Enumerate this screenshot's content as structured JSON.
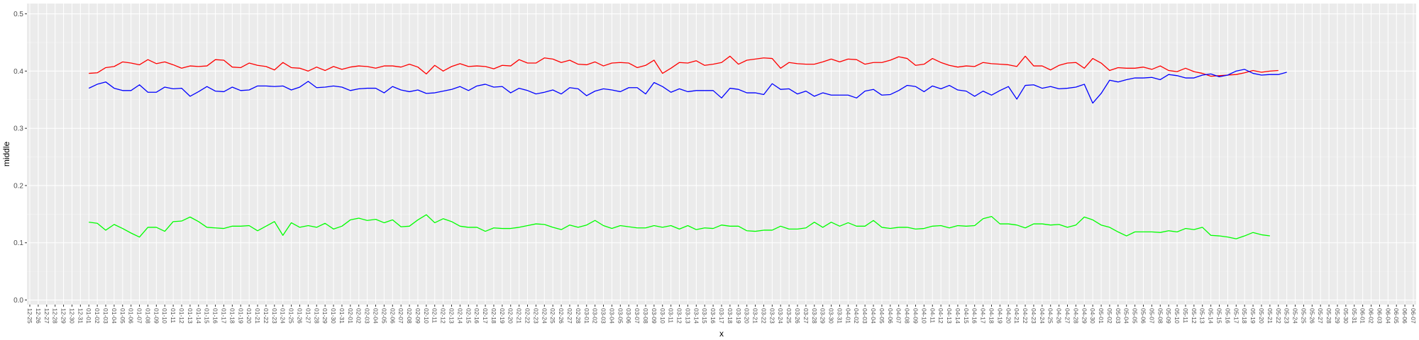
{
  "chart_data": {
    "type": "line",
    "xlabel": "x",
    "ylabel": "middle",
    "ylim": [
      -0.008,
      0.518
    ],
    "y_ticks": [
      0.0,
      0.1,
      0.2,
      0.3,
      0.4,
      0.5
    ],
    "y_tick_labels": [
      "0.0",
      "0.1",
      "0.2",
      "0.3",
      "0.4",
      "0.5"
    ],
    "x_tick_labels": [
      "12-25",
      "12-26",
      "12-27",
      "12-28",
      "12-29",
      "12-30",
      "12-31",
      "01-01",
      "01-02",
      "01-03",
      "01-04",
      "01-05",
      "01-06",
      "01-07",
      "01-08",
      "01-09",
      "01-10",
      "01-11",
      "01-12",
      "01-13",
      "01-14",
      "01-15",
      "01-16",
      "01-17",
      "01-18",
      "01-19",
      "01-20",
      "01-21",
      "01-22",
      "01-23",
      "01-24",
      "01-25",
      "01-26",
      "01-27",
      "01-28",
      "01-29",
      "01-30",
      "01-31",
      "02-01",
      "02-02",
      "02-03",
      "02-04",
      "02-05",
      "02-06",
      "02-07",
      "02-08",
      "02-09",
      "02-10",
      "02-11",
      "02-12",
      "02-13",
      "02-14",
      "02-15",
      "02-16",
      "02-17",
      "02-18",
      "02-19",
      "02-20",
      "02-21",
      "02-22",
      "02-23",
      "02-24",
      "02-25",
      "02-26",
      "02-27",
      "02-28",
      "03-01",
      "03-02",
      "03-03",
      "03-04",
      "03-05",
      "03-06",
      "03-07",
      "03-08",
      "03-09",
      "03-10",
      "03-11",
      "03-12",
      "03-13",
      "03-14",
      "03-15",
      "03-16",
      "03-17",
      "03-18",
      "03-19",
      "03-20",
      "03-21",
      "03-22",
      "03-23",
      "03-24",
      "03-25",
      "03-26",
      "03-27",
      "03-28",
      "03-29",
      "03-30",
      "03-31",
      "04-01",
      "04-02",
      "04-03",
      "04-04",
      "04-05",
      "04-06",
      "04-07",
      "04-08",
      "04-09",
      "04-10",
      "04-11",
      "04-12",
      "04-13",
      "04-14",
      "04-15",
      "04-16",
      "04-17",
      "04-18",
      "04-19",
      "04-20",
      "04-21",
      "04-22",
      "04-23",
      "04-24",
      "04-25",
      "04-26",
      "04-27",
      "04-28",
      "04-29",
      "04-30",
      "05-01",
      "05-02",
      "05-03",
      "05-04",
      "05-05",
      "05-06",
      "05-07",
      "05-08",
      "05-09",
      "05-10",
      "05-11",
      "05-12",
      "05-13",
      "05-14",
      "05-15",
      "05-16",
      "05-17",
      "05-18",
      "05-19",
      "05-20",
      "05-21",
      "05-22",
      "05-23",
      "05-24",
      "05-25",
      "05-26",
      "05-27",
      "05-28",
      "05-29",
      "05-30",
      "05-31",
      "06-01",
      "06-02",
      "06-03",
      "06-04",
      "06-05",
      "06-06",
      "06-07"
    ],
    "x_first_data_index": 7,
    "grid": true,
    "legend": "none",
    "series": [
      {
        "color": "#ff0000",
        "values": [
          0.396,
          0.397,
          0.406,
          0.408,
          0.416,
          0.414,
          0.411,
          0.42,
          0.413,
          0.416,
          0.411,
          0.405,
          0.409,
          0.408,
          0.409,
          0.42,
          0.419,
          0.407,
          0.406,
          0.414,
          0.41,
          0.408,
          0.402,
          0.415,
          0.406,
          0.405,
          0.4,
          0.407,
          0.401,
          0.408,
          0.403,
          0.407,
          0.409,
          0.408,
          0.405,
          0.409,
          0.409,
          0.407,
          0.412,
          0.407,
          0.395,
          0.41,
          0.4,
          0.408,
          0.413,
          0.408,
          0.409,
          0.408,
          0.404,
          0.41,
          0.409,
          0.42,
          0.414,
          0.414,
          0.423,
          0.421,
          0.415,
          0.419,
          0.412,
          0.411,
          0.416,
          0.409,
          0.414,
          0.415,
          0.414,
          0.406,
          0.41,
          0.419,
          0.396,
          0.405,
          0.415,
          0.414,
          0.418,
          0.41,
          0.412,
          0.415,
          0.426,
          0.412,
          0.419,
          0.421,
          0.423,
          0.422,
          0.405,
          0.415,
          0.413,
          0.412,
          0.412,
          0.416,
          0.421,
          0.416,
          0.421,
          0.42,
          0.412,
          0.415,
          0.415,
          0.419,
          0.425,
          0.422,
          0.41,
          0.412,
          0.422,
          0.415,
          0.41,
          0.407,
          0.409,
          0.408,
          0.415,
          0.413,
          0.412,
          0.411,
          0.408,
          0.426,
          0.409,
          0.409,
          0.402,
          0.41,
          0.414,
          0.415,
          0.405,
          0.422,
          0.414,
          0.401,
          0.406,
          0.405,
          0.405,
          0.407,
          0.403,
          0.409,
          0.401,
          0.399,
          0.405,
          0.399,
          0.396,
          0.391,
          0.392,
          0.393,
          0.394,
          0.397,
          0.401,
          0.398,
          0.4,
          0.401
        ]
      },
      {
        "color": "#0000ff",
        "values": [
          0.37,
          0.377,
          0.381,
          0.37,
          0.366,
          0.366,
          0.376,
          0.363,
          0.363,
          0.372,
          0.369,
          0.37,
          0.356,
          0.364,
          0.373,
          0.365,
          0.364,
          0.372,
          0.366,
          0.367,
          0.374,
          0.374,
          0.373,
          0.374,
          0.367,
          0.372,
          0.382,
          0.371,
          0.372,
          0.374,
          0.372,
          0.366,
          0.369,
          0.37,
          0.37,
          0.362,
          0.373,
          0.367,
          0.364,
          0.367,
          0.361,
          0.362,
          0.365,
          0.368,
          0.373,
          0.366,
          0.374,
          0.377,
          0.372,
          0.373,
          0.362,
          0.37,
          0.366,
          0.36,
          0.363,
          0.367,
          0.36,
          0.371,
          0.369,
          0.357,
          0.365,
          0.369,
          0.367,
          0.364,
          0.371,
          0.371,
          0.36,
          0.38,
          0.373,
          0.363,
          0.369,
          0.364,
          0.366,
          0.366,
          0.366,
          0.353,
          0.37,
          0.368,
          0.362,
          0.362,
          0.359,
          0.378,
          0.368,
          0.369,
          0.36,
          0.365,
          0.356,
          0.362,
          0.358,
          0.358,
          0.358,
          0.353,
          0.365,
          0.368,
          0.358,
          0.359,
          0.366,
          0.375,
          0.373,
          0.364,
          0.374,
          0.369,
          0.375,
          0.367,
          0.365,
          0.356,
          0.365,
          0.358,
          0.366,
          0.373,
          0.351,
          0.375,
          0.376,
          0.37,
          0.373,
          0.369,
          0.37,
          0.372,
          0.377,
          0.344,
          0.361,
          0.384,
          0.381,
          0.385,
          0.388,
          0.388,
          0.389,
          0.385,
          0.394,
          0.392,
          0.388,
          0.388,
          0.393,
          0.395,
          0.39,
          0.393,
          0.4,
          0.403,
          0.396,
          0.393,
          0.394,
          0.394,
          0.398
        ]
      },
      {
        "color": "#00ff00",
        "values": [
          0.136,
          0.134,
          0.122,
          0.132,
          0.125,
          0.117,
          0.11,
          0.127,
          0.127,
          0.12,
          0.137,
          0.138,
          0.145,
          0.137,
          0.127,
          0.126,
          0.125,
          0.129,
          0.129,
          0.13,
          0.121,
          0.129,
          0.137,
          0.113,
          0.135,
          0.127,
          0.13,
          0.127,
          0.134,
          0.124,
          0.129,
          0.14,
          0.143,
          0.139,
          0.141,
          0.135,
          0.14,
          0.128,
          0.129,
          0.14,
          0.149,
          0.135,
          0.142,
          0.137,
          0.129,
          0.127,
          0.127,
          0.12,
          0.126,
          0.125,
          0.125,
          0.127,
          0.13,
          0.133,
          0.132,
          0.127,
          0.123,
          0.131,
          0.127,
          0.131,
          0.139,
          0.13,
          0.125,
          0.13,
          0.128,
          0.126,
          0.126,
          0.13,
          0.127,
          0.13,
          0.124,
          0.13,
          0.123,
          0.126,
          0.125,
          0.131,
          0.129,
          0.129,
          0.121,
          0.12,
          0.122,
          0.122,
          0.129,
          0.124,
          0.124,
          0.126,
          0.136,
          0.127,
          0.136,
          0.129,
          0.135,
          0.129,
          0.129,
          0.139,
          0.127,
          0.125,
          0.127,
          0.127,
          0.124,
          0.125,
          0.129,
          0.13,
          0.126,
          0.13,
          0.129,
          0.13,
          0.142,
          0.146,
          0.133,
          0.133,
          0.131,
          0.126,
          0.133,
          0.133,
          0.131,
          0.132,
          0.127,
          0.131,
          0.145,
          0.14,
          0.131,
          0.127,
          0.119,
          0.112,
          0.119,
          0.119,
          0.119,
          0.118,
          0.121,
          0.119,
          0.125,
          0.123,
          0.127,
          0.113,
          0.112,
          0.11,
          0.107,
          0.112,
          0.118,
          0.114,
          0.112
        ]
      }
    ]
  }
}
